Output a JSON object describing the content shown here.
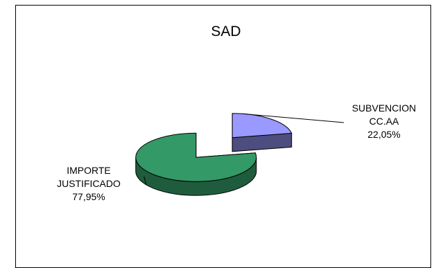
{
  "chart_data": {
    "type": "pie",
    "title": "SAD",
    "slices": [
      {
        "label_lines": [
          "SUBVENCION",
          "CC.AA"
        ],
        "value_label": "22,05%",
        "value": 22.05,
        "color": "#9999ff",
        "side_color": "#4d4d80"
      },
      {
        "label_lines": [
          "IMPORTE",
          "JUSTIFICADO"
        ],
        "value_label": "77,95%",
        "value": 77.95,
        "color": "#339966",
        "side_color": "#1f5c3d"
      }
    ],
    "exploded": true,
    "three_d": true,
    "legend": "none"
  }
}
